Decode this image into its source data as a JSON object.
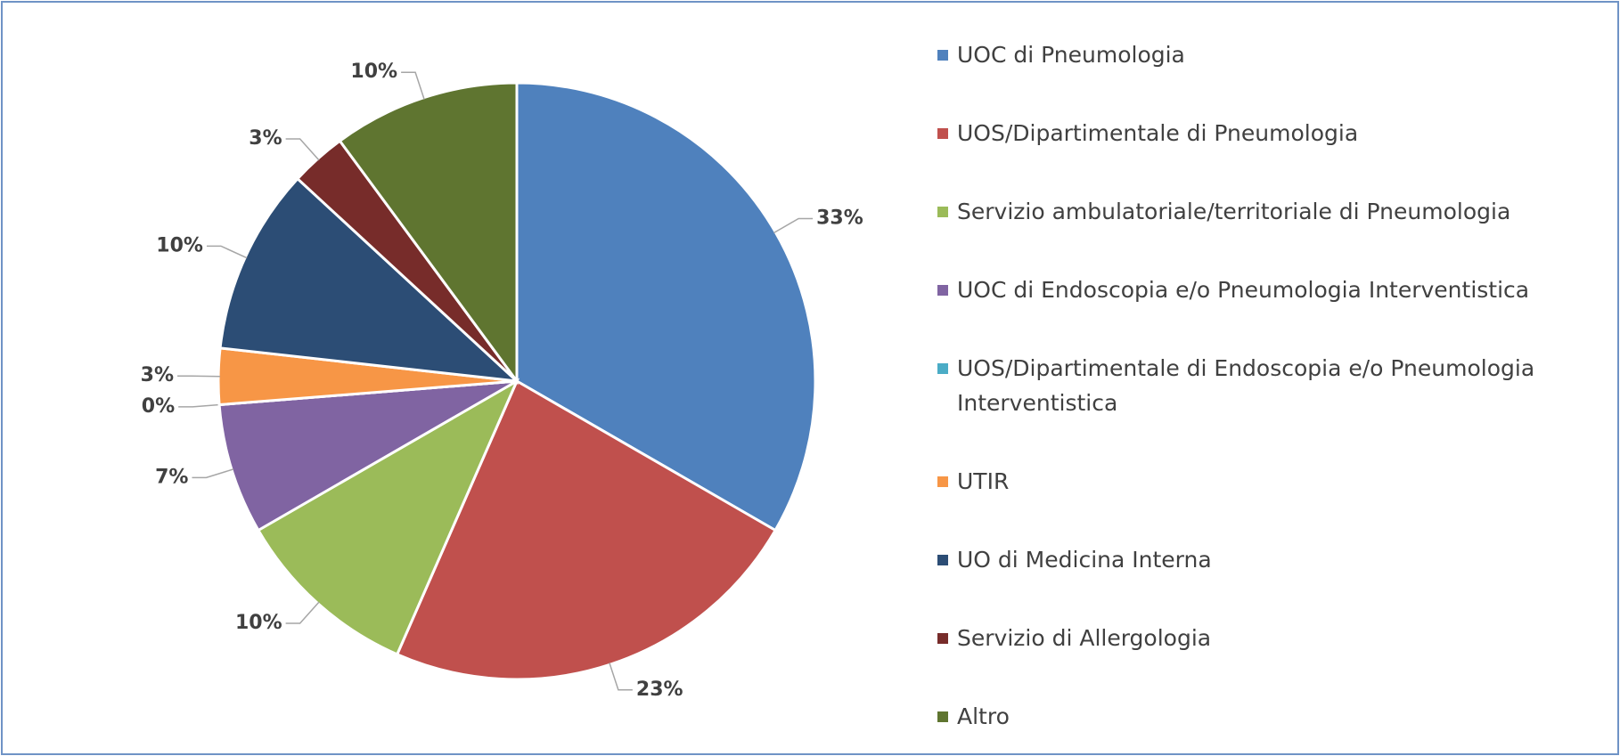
{
  "chart_data": {
    "type": "pie",
    "categories": [
      "UOC di Pneumologia",
      "UOS/Dipartimentale di Pneumologia",
      "Servizio ambulatoriale/territoriale di Pneumologia",
      "UOC di Endoscopia e/o Pneumologia Interventistica",
      "UOS/Dipartimentale di Endoscopia e/o Pneumologia Interventistica",
      "UTIR",
      "UO di Medicina Interna",
      "Servizio di Allergologia",
      "Altro"
    ],
    "values": [
      33,
      23,
      10,
      7,
      0,
      3,
      10,
      3,
      10
    ],
    "value_labels": [
      "33%",
      "23%",
      "10%",
      "7%",
      "0%",
      "3%",
      "10%",
      "3%",
      "10%"
    ],
    "colors": [
      "#4f81bd",
      "#c0504d",
      "#9bbb59",
      "#8064a2",
      "#4bacc6",
      "#f79646",
      "#2c4d75",
      "#772c2a",
      "#5f7530"
    ],
    "legend": "right"
  }
}
